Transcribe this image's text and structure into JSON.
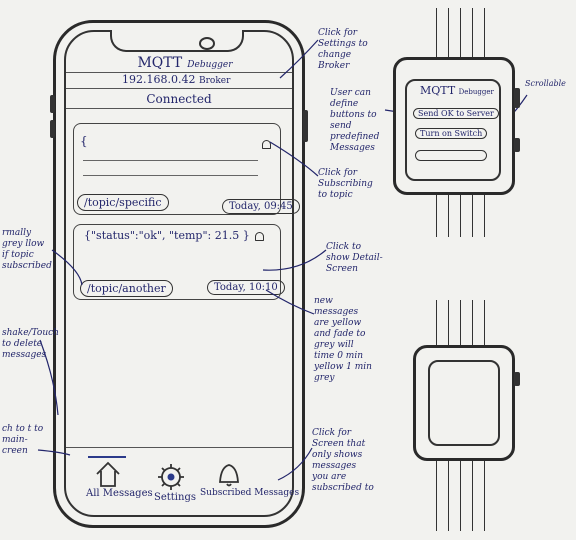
{
  "phone": {
    "app_title": "MQTT",
    "app_subtitle": "Debugger",
    "broker_address": "192.168.0.42",
    "broker_label": "Broker",
    "connection_status": "Connected",
    "messages": [
      {
        "payload": "{",
        "topic": "/topic/specific",
        "time": "Today, 09:45",
        "icon": "bell-icon"
      },
      {
        "payload": "{\"status\":\"ok\", \"temp\": 21.5 }",
        "topic": "/topic/another",
        "time": "Today, 10:10",
        "icon": "bell-icon"
      }
    ],
    "tabs": [
      {
        "label": "All Messages",
        "icon": "home-icon"
      },
      {
        "label": "Settings",
        "icon": "gear-icon"
      },
      {
        "label": "Subscribed Messages",
        "icon": "bell-icon"
      }
    ]
  },
  "annotations": {
    "settings": "Click for Settings to change Broker",
    "subscribe": "Click for Subscribing to topic",
    "detail": "Click to show Detail-Screen",
    "new_messages": "new messages are yellow and fade to grey will time 0 min yellow 1 min grey",
    "subscribed_screen": "Click for Screen that only shows messages you are subscribed to",
    "grey_yellow": "rmally grey llow if topic subscribed",
    "swipe": "shake/Touch to delete messages",
    "switch_main": "ch to t to main- creen",
    "user_define": "User can define buttons to send predefined Messages",
    "scrollable": "Scrollable"
  },
  "watch": {
    "title": "MQTT",
    "subtitle": "Debugger",
    "buttons": [
      "Send OK to Server",
      "Turn on Switch"
    ]
  }
}
